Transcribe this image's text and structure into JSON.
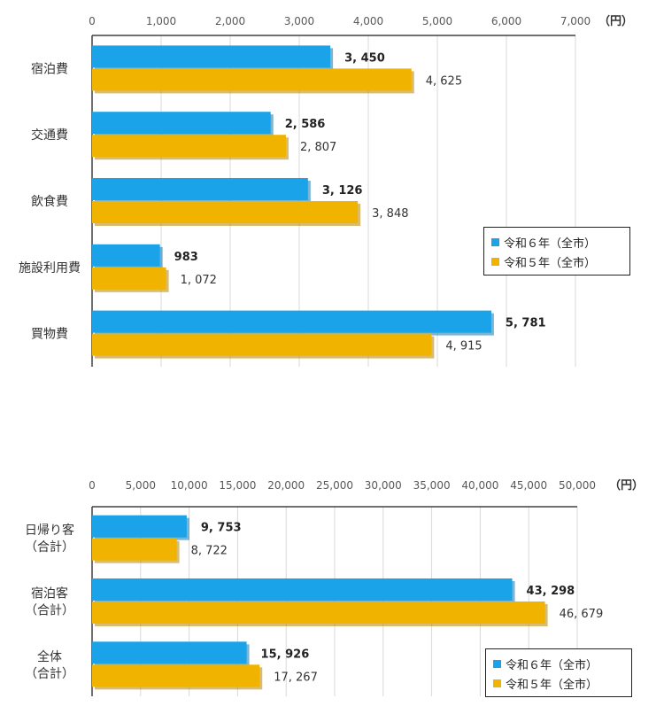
{
  "colors": {
    "series_a": "#1aa3e8",
    "series_b": "#f0b400"
  },
  "chart_data": [
    {
      "type": "bar",
      "orientation": "horizontal",
      "unit": "（円）",
      "xlim": [
        0,
        7000
      ],
      "tick_values": [
        0,
        1000,
        2000,
        3000,
        4000,
        5000,
        6000,
        7000
      ],
      "tick_labels": [
        "0",
        "1,000",
        "2,000",
        "3,000",
        "4,000",
        "5,000",
        "6,000",
        "7,000"
      ],
      "categories": [
        [
          "宿泊費"
        ],
        [
          "交通費"
        ],
        [
          "飲食費"
        ],
        [
          "施設利用費"
        ],
        [
          "買物費"
        ]
      ],
      "series": [
        {
          "name": "令和６年（全市）",
          "values": [
            3450,
            2586,
            3126,
            983,
            5781
          ],
          "labels": [
            "3, 450",
            "2, 586",
            "3, 126",
            "983",
            "5, 781"
          ]
        },
        {
          "name": "令和５年（全市）",
          "values": [
            4625,
            2807,
            3848,
            1072,
            4915
          ],
          "labels": [
            "4, 625",
            "2, 807",
            "3, 848",
            "1, 072",
            "4, 915"
          ]
        }
      ],
      "legend": "right"
    },
    {
      "type": "bar",
      "orientation": "horizontal",
      "unit": "（円）",
      "xlim": [
        0,
        50000
      ],
      "tick_values": [
        0,
        5000,
        10000,
        15000,
        20000,
        25000,
        30000,
        35000,
        40000,
        45000,
        50000
      ],
      "tick_labels": [
        "0",
        "5,000",
        "10,000",
        "15,000",
        "20,000",
        "25,000",
        "30,000",
        "35,000",
        "40,000",
        "45,000",
        "50,000"
      ],
      "categories": [
        [
          "日帰り客",
          "（合計）"
        ],
        [
          "宿泊客",
          "（合計）"
        ],
        [
          "全体",
          "（合計）"
        ]
      ],
      "series": [
        {
          "name": "令和６年（全市）",
          "values": [
            9753,
            43298,
            15926
          ],
          "labels": [
            "9, 753",
            "43, 298",
            "15, 926"
          ]
        },
        {
          "name": "令和５年（全市）",
          "values": [
            8722,
            46679,
            17267
          ],
          "labels": [
            "8, 722",
            "46, 679",
            "17, 267"
          ]
        }
      ],
      "legend": "bottom-right"
    }
  ]
}
